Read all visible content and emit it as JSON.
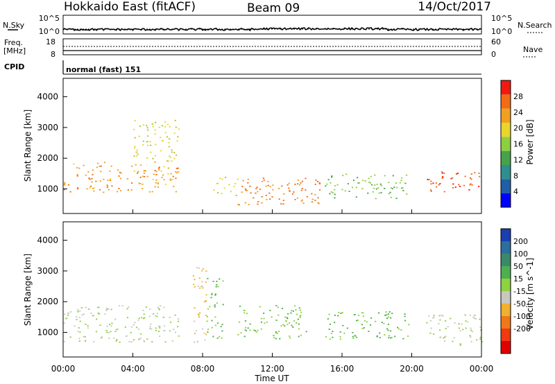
{
  "header": {
    "radar": "Hokkaido East (fitACF)",
    "beam": "Beam 09",
    "date": "14/Oct/2017"
  },
  "left_labels": {
    "nsky": "N.Sky",
    "freq": "Freq.",
    "freq_unit": "[MHz]",
    "cpid": "CPID"
  },
  "right_labels": {
    "nsearch": "N.Search",
    "nave": "Nave"
  },
  "noise_ticks": {
    "top": "10^5",
    "bottom": "10^0"
  },
  "freq_ticks": {
    "top": "18",
    "bottom": "8"
  },
  "nave_ticks": {
    "top": "60",
    "bottom": "0"
  },
  "cpid_text": "normal (fast) 151",
  "axes": {
    "ylabel": "Slant Range [km]",
    "xlabel": "Time UT",
    "yticks": [
      "1000",
      "2000",
      "3000",
      "4000"
    ],
    "xticks": [
      "00:00",
      "04:00",
      "08:00",
      "12:00",
      "16:00",
      "20:00",
      "00:00"
    ]
  },
  "power_colorbar": {
    "label": "Power [dB]",
    "ticks": [
      "4",
      "8",
      "12",
      "16",
      "20",
      "24",
      "28"
    ],
    "colors": [
      "#0000ff",
      "#1f5fa8",
      "#2f8f8f",
      "#46a34a",
      "#8fcf3f",
      "#e8d62a",
      "#f0a020",
      "#f36b16",
      "#f01a10"
    ]
  },
  "velocity_colorbar": {
    "label": "Velocity [m s^-1]",
    "ticks": [
      "200",
      "100",
      "50",
      "15",
      "-15",
      "-50",
      "-100",
      "-200"
    ],
    "colors": [
      "#1a3fb0",
      "#2c6e9e",
      "#3a8a6a",
      "#4caf50",
      "#8fd23f",
      "#c8c8c0",
      "#f0b030",
      "#f07818",
      "#f03a10",
      "#e00000"
    ]
  },
  "chart_data": {
    "type": "heatmap",
    "title": "Hokkaido East (fitACF)",
    "xlabel": "Time UT",
    "ylabel": "Slant Range [km]",
    "xlim": [
      0,
      24
    ],
    "ylim": [
      200,
      4600
    ],
    "panels": [
      {
        "name": "Power",
        "unit": "dB",
        "range": [
          0,
          30
        ],
        "bands": [
          {
            "t": [
              0,
              6.6
            ],
            "range": [
              900,
              1900
            ],
            "dominant": 22
          },
          {
            "t": [
              4.0,
              6.6
            ],
            "range": [
              1900,
              3300
            ],
            "dominant": 18
          },
          {
            "t": [
              8.6,
              10.0
            ],
            "range": [
              800,
              1400
            ],
            "dominant": 18
          },
          {
            "t": [
              10.0,
              15.0
            ],
            "range": [
              500,
              1400
            ],
            "dominant": 24
          },
          {
            "t": [
              15.0,
              19.8
            ],
            "range": [
              700,
              1500
            ],
            "dominant": 14
          },
          {
            "t": [
              20.8,
              24.0
            ],
            "range": [
              900,
              1600
            ],
            "dominant": 26
          }
        ]
      },
      {
        "name": "Velocity",
        "unit": "m s^-1",
        "range": [
          -200,
          200
        ],
        "bands": [
          {
            "t": [
              0,
              6.6
            ],
            "range": [
              700,
              1900
            ],
            "dominant": 0
          },
          {
            "t": [
              7.4,
              8.2
            ],
            "range": [
              700,
              3200
            ],
            "dominant": -40
          },
          {
            "t": [
              8.2,
              9.2
            ],
            "range": [
              800,
              2800
            ],
            "dominant": 40
          },
          {
            "t": [
              10.0,
              14.0
            ],
            "range": [
              800,
              1900
            ],
            "dominant": 35
          },
          {
            "t": [
              15.0,
              19.8
            ],
            "range": [
              800,
              1700
            ],
            "dominant": 40
          },
          {
            "t": [
              20.8,
              24.0
            ],
            "range": [
              600,
              1600
            ],
            "dominant": 0
          }
        ]
      }
    ]
  }
}
